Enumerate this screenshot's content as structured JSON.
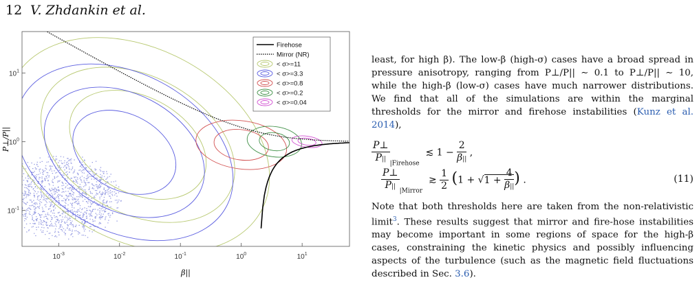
{
  "header": {
    "page_number": "12",
    "authors": "V. Zhdankin et al."
  },
  "figure": {
    "chart_data": {
      "type": "contour",
      "xlabel": "β||",
      "ylabel": "P⊥/P||",
      "xscale": "log",
      "yscale": "log",
      "xlim": [
        0.00025,
        60
      ],
      "ylim": [
        0.03,
        40
      ],
      "xticks": [
        "10-3",
        "10-2",
        "10-1",
        "100",
        "101"
      ],
      "yticks": [
        "10-1",
        "100",
        "101"
      ],
      "legend_position": "top-right",
      "series": [
        {
          "name": "Firehose",
          "kind": "line",
          "color": "#000000"
        },
        {
          "name": "Mirror (NR)",
          "kind": "dotted",
          "color": "#000000"
        },
        {
          "name": "< σ>=11",
          "kind": "contour",
          "color": "#b7c86f",
          "center": [
            0.02,
            0.9
          ],
          "ranges_decades": [
            [
              1.2,
              0.7
            ],
            [
              1.7,
              1.0
            ],
            [
              2.3,
              1.4
            ]
          ]
        },
        {
          "name": "< σ>=3.3",
          "kind": "contour",
          "color": "#5a5de0",
          "center": [
            0.012,
            0.7
          ],
          "ranges_decades": [
            [
              0.9,
              0.55
            ],
            [
              1.4,
              0.85
            ],
            [
              1.9,
              1.15
            ]
          ]
        },
        {
          "name": "< σ>=0.8",
          "kind": "contour",
          "color": "#d25050",
          "center": [
            1.0,
            0.9
          ],
          "ranges_decades": [
            [
              0.45,
              0.22
            ],
            [
              0.75,
              0.35
            ]
          ]
        },
        {
          "name": "< σ>=0.2",
          "kind": "contour",
          "color": "#3e8f45",
          "center": [
            3.5,
            1.0
          ],
          "ranges_decades": [
            [
              0.25,
              0.13
            ],
            [
              0.45,
              0.22
            ]
          ]
        },
        {
          "name": "< σ>=0.04",
          "kind": "contour",
          "color": "#d24fd2",
          "center": [
            12,
            1.0
          ],
          "ranges_decades": [
            [
              0.15,
              0.05
            ],
            [
              0.25,
              0.08
            ]
          ]
        }
      ]
    }
  },
  "text": {
    "p1": "least, for high β). The low-β (high-σ) cases have a broad spread in pressure anisotropy, ranging from P⊥/P|| ∼ 0.1 to P⊥/P|| ∼ 10, while the high-β (low-σ) cases have much narrower distributions. We find that all of the simulations are within the marginal thresholds for the mirror and firehose instabilities (",
    "p1_cite": "Kunz et al. 2014",
    "p1_end": "),",
    "eq_no": "(11)",
    "p2a": "Note that both thresholds here are taken from the non-relativistic limit",
    "p2_fn": "3",
    "p2b": ". These results suggest that mirror and fire-hose instabilities may become important in some regions of space for the high-β cases, constraining the kinetic physics and possibly influencing aspects of the turbulence (such as the magnetic field fluctuations described in Sec. ",
    "p2_sec": "3.6",
    "p2_end": ")."
  }
}
